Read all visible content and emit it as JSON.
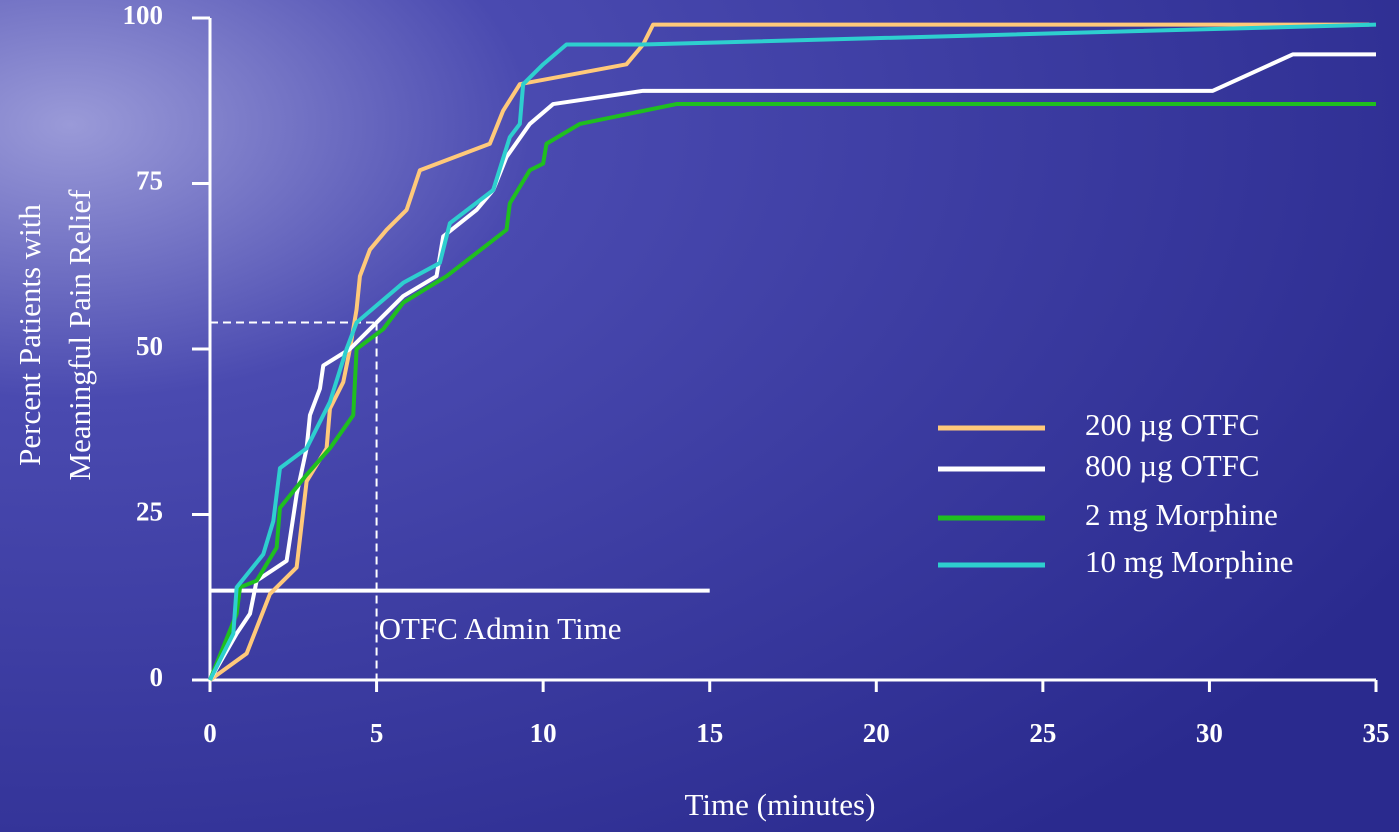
{
  "chart_data": {
    "type": "line",
    "ylabel": [
      "Percent Patients with",
      "Meaningful Pain Relief"
    ],
    "xlabel": "Time (minutes)",
    "annotation": "OTFC Admin Time",
    "xlim": [
      0,
      35
    ],
    "ylim": [
      0,
      100
    ],
    "xticks": [
      0,
      5,
      10,
      15,
      20,
      25,
      30,
      35
    ],
    "yticks": [
      0,
      25,
      50,
      75,
      100
    ],
    "vline": 5,
    "hline": 54,
    "admin_bar": {
      "y": 13.5,
      "x": [
        0,
        15
      ]
    },
    "series": [
      {
        "name": "200 µg OTFC",
        "color": "#ffc97a",
        "x": [
          0,
          1.1,
          1.8,
          2.6,
          2.9,
          3.5,
          3.6,
          4,
          4.2,
          4.4,
          4.5,
          4.8,
          5.3,
          5.9,
          6.3,
          8.4,
          8.8,
          9.3,
          12.5,
          13,
          13.3,
          34.8
        ],
        "values": [
          0,
          4,
          13,
          17,
          30,
          35,
          41,
          45,
          50,
          56,
          61,
          65,
          68,
          71,
          77,
          81,
          86,
          90,
          93,
          96,
          99,
          99
        ]
      },
      {
        "name": "800 µg OTFC",
        "color": "#ffffff",
        "x": [
          0,
          0.8,
          1.2,
          1.4,
          2.3,
          2.6,
          2.9,
          3,
          3.3,
          3.4,
          4.2,
          5,
          5.8,
          6.8,
          7,
          8,
          8.5,
          8.9,
          9.6,
          10.3,
          13,
          30.1,
          32.5,
          35
        ],
        "values": [
          0,
          7,
          10,
          15,
          18,
          28,
          35,
          40,
          44,
          47.5,
          50,
          54,
          58,
          61,
          67,
          71,
          74,
          79,
          84,
          87,
          89,
          89,
          94.5,
          94.5
        ]
      },
      {
        "name": "2 mg Morphine",
        "color": "#1fbf1f",
        "x": [
          0,
          0.8,
          0.9,
          1.4,
          2,
          2.1,
          2.9,
          3.6,
          4.3,
          4.4,
          5.2,
          5.8,
          7.1,
          8.9,
          9,
          9.6,
          10,
          10.1,
          11.1,
          14,
          35
        ],
        "values": [
          0,
          10,
          14,
          15,
          20,
          26,
          31,
          35,
          40,
          50,
          53,
          57,
          61,
          68,
          72,
          77,
          78,
          81,
          84,
          87,
          87
        ]
      },
      {
        "name": "10 mg Morphine",
        "color": "#2ecfcf",
        "x": [
          0,
          0.7,
          0.8,
          1.6,
          1.9,
          2,
          2.1,
          2.9,
          3.6,
          4.1,
          4.4,
          5.8,
          6.9,
          7.2,
          8.5,
          9,
          9.3,
          9.4,
          10,
          10.7,
          13,
          35
        ],
        "values": [
          0,
          7,
          14,
          19,
          24,
          28,
          32,
          35,
          42,
          50,
          54,
          60,
          63,
          69,
          74,
          82,
          84,
          90,
          93,
          96,
          96,
          99
        ]
      }
    ]
  }
}
